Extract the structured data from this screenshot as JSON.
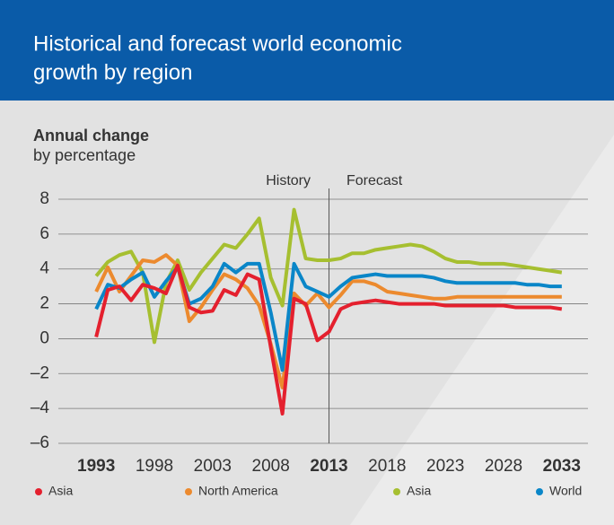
{
  "chart_data": {
    "type": "line",
    "title": [
      "Historical and forecast world economic",
      "growth by region"
    ],
    "y_axis_title": "Annual change",
    "y_axis_subtitle": "by percentage",
    "annotations": {
      "history": "History",
      "forecast": "Forecast"
    },
    "forecast_start": 2013,
    "x": [
      1993,
      1994,
      1995,
      1996,
      1997,
      1998,
      1999,
      2000,
      2001,
      2002,
      2003,
      2004,
      2005,
      2006,
      2007,
      2008,
      2009,
      2010,
      2011,
      2012,
      2013,
      2014,
      2015,
      2016,
      2017,
      2018,
      2019,
      2020,
      2021,
      2022,
      2023,
      2024,
      2025,
      2026,
      2027,
      2028,
      2029,
      2030,
      2031,
      2032,
      2033
    ],
    "xlim": [
      1989.75,
      2035.25
    ],
    "xticks": [
      1993,
      1998,
      2003,
      2008,
      2013,
      2018,
      2023,
      2028,
      2033
    ],
    "bold_xticks": [
      1993,
      2013,
      2033
    ],
    "ylim": [
      -6,
      8
    ],
    "yticks": [
      {
        "value": -6,
        "label": "–6"
      },
      {
        "value": -4,
        "label": "–4"
      },
      {
        "value": -2,
        "label": "–2"
      },
      0,
      2,
      4,
      6,
      8
    ],
    "grid": true,
    "series": [
      {
        "name": "Asia",
        "color": "#e4202e",
        "values": [
          0.1,
          2.8,
          3.0,
          2.2,
          3.1,
          2.9,
          2.6,
          4.2,
          1.8,
          1.5,
          1.6,
          2.8,
          2.5,
          3.7,
          3.4,
          -0.5,
          -4.3,
          2.3,
          2.0,
          -0.1,
          0.4,
          1.7,
          2.0,
          2.1,
          2.2,
          2.1,
          2.0,
          2.0,
          2.0,
          2.0,
          1.9,
          1.9,
          1.9,
          1.9,
          1.9,
          1.9,
          1.8,
          1.8,
          1.8,
          1.8,
          1.7
        ]
      },
      {
        "name": "North America",
        "color": "#ec8a2e",
        "values": [
          2.7,
          4.1,
          2.7,
          3.6,
          4.5,
          4.4,
          4.8,
          4.2,
          1.0,
          1.8,
          2.8,
          3.7,
          3.4,
          2.9,
          1.9,
          -0.3,
          -2.8,
          2.6,
          1.9,
          2.6,
          1.8,
          2.5,
          3.3,
          3.3,
          3.1,
          2.7,
          2.6,
          2.5,
          2.4,
          2.3,
          2.3,
          2.4,
          2.4,
          2.4,
          2.4,
          2.4,
          2.4,
          2.4,
          2.4,
          2.4,
          2.4
        ]
      },
      {
        "name": "Asia",
        "color": "#a6bf30",
        "values": [
          3.6,
          4.4,
          4.8,
          5.0,
          3.8,
          -0.2,
          3.2,
          4.5,
          2.8,
          3.8,
          4.6,
          5.4,
          5.2,
          6.0,
          6.9,
          3.5,
          1.9,
          7.4,
          4.6,
          4.5,
          4.5,
          4.6,
          4.9,
          4.9,
          5.1,
          5.2,
          5.3,
          5.4,
          5.3,
          5.0,
          4.6,
          4.4,
          4.4,
          4.3,
          4.3,
          4.3,
          4.2,
          4.1,
          4.0,
          3.9,
          3.8
        ]
      },
      {
        "name": "World",
        "color": "#0a86c8",
        "values": [
          1.7,
          3.1,
          2.9,
          3.4,
          3.8,
          2.4,
          3.3,
          4.1,
          2.0,
          2.3,
          3.0,
          4.3,
          3.8,
          4.3,
          4.3,
          1.5,
          -1.8,
          4.3,
          3.0,
          2.7,
          2.4,
          3.0,
          3.5,
          3.6,
          3.7,
          3.6,
          3.6,
          3.6,
          3.6,
          3.5,
          3.3,
          3.2,
          3.2,
          3.2,
          3.2,
          3.2,
          3.2,
          3.1,
          3.1,
          3.0,
          3.0
        ]
      }
    ]
  }
}
